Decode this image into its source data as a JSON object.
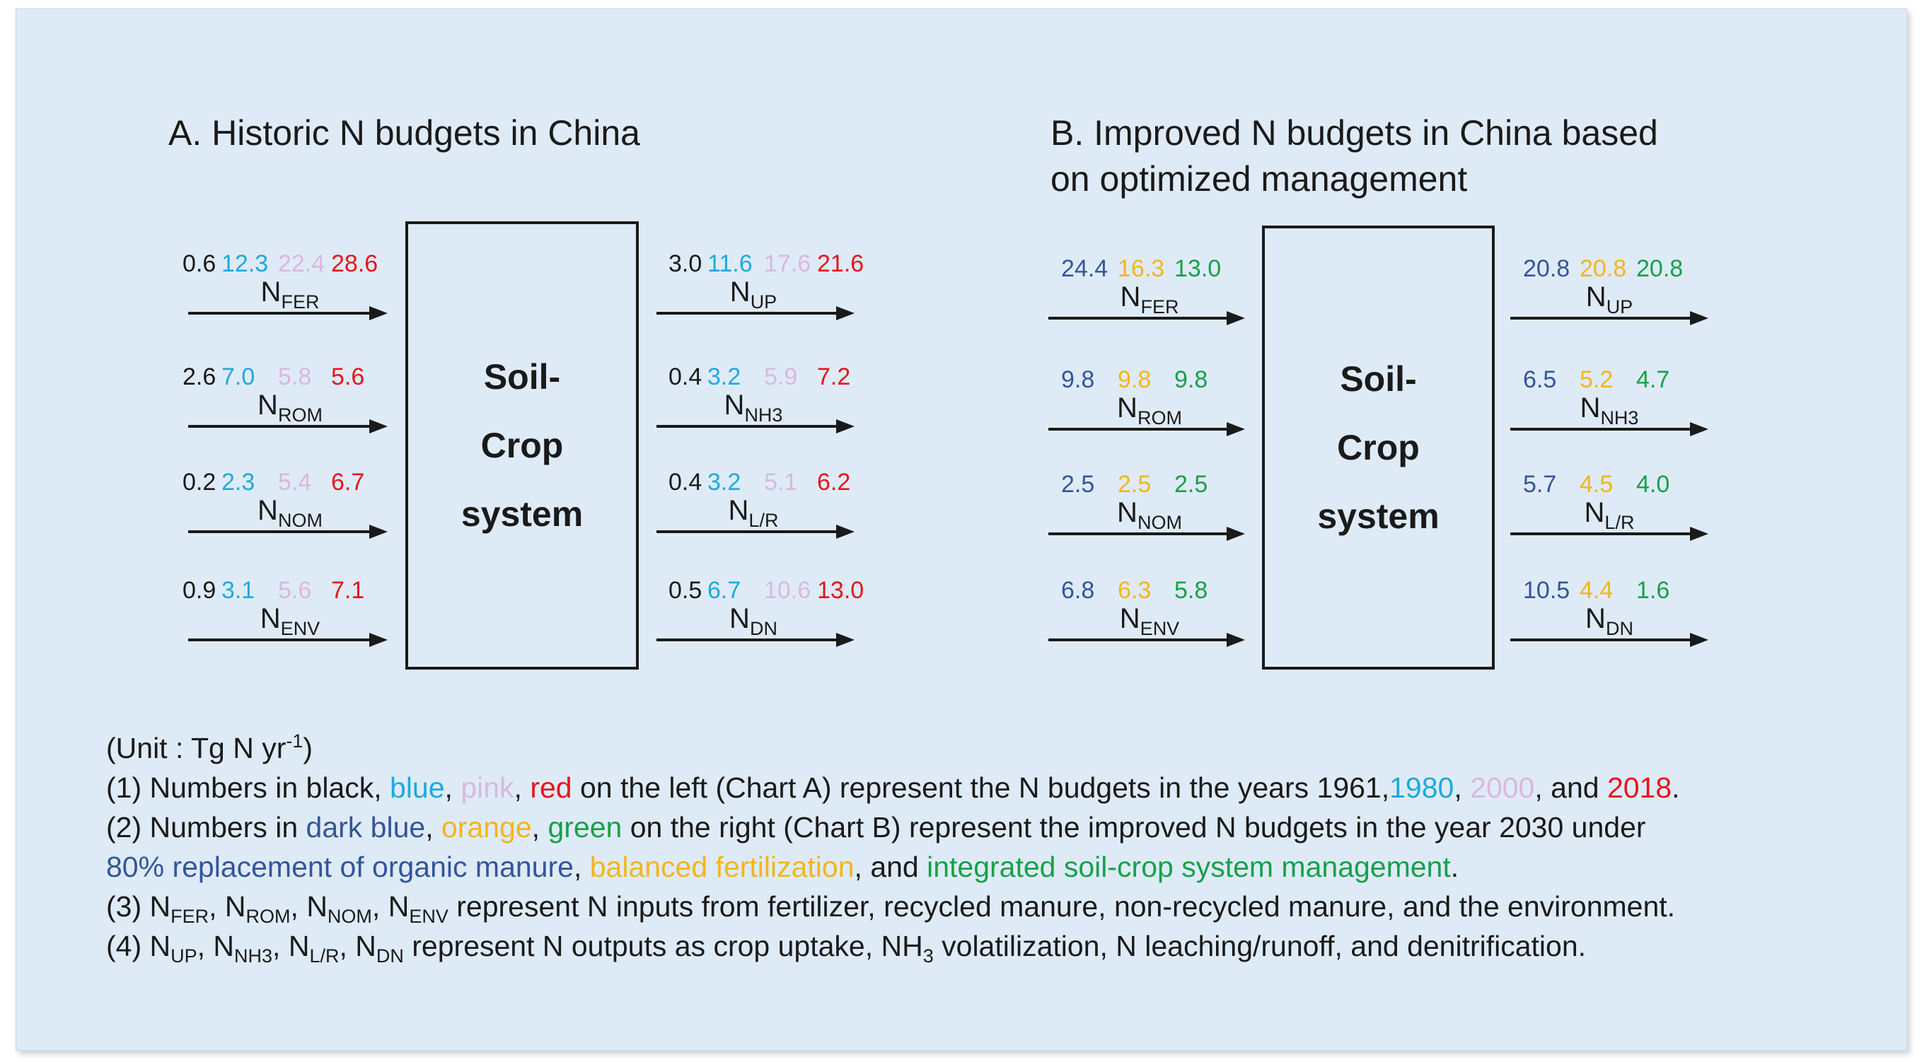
{
  "colors": {
    "black": "#1a1a1a",
    "blue": "#1fa9de",
    "pink": "#d9b8de",
    "red": "#e8141c",
    "dark_blue": "#34559b",
    "orange": "#f5b41e",
    "green": "#18a04a",
    "background": "#deebf7"
  },
  "chartA": {
    "title": "A. Historic N budgets in China",
    "box": [
      "Soil-",
      "Crop",
      "system"
    ],
    "inputs": [
      {
        "label": "N",
        "sub": "FER",
        "values": [
          "0.6",
          "12.3",
          "22.4",
          "28.6"
        ]
      },
      {
        "label": "N",
        "sub": "ROM",
        "values": [
          "2.6",
          "7.0",
          "5.8",
          "5.6"
        ]
      },
      {
        "label": "N",
        "sub": "NOM",
        "values": [
          "0.2",
          "2.3",
          "5.4",
          "6.7"
        ]
      },
      {
        "label": "N",
        "sub": "ENV",
        "values": [
          "0.9",
          "3.1",
          "5.6",
          "7.1"
        ]
      }
    ],
    "outputs": [
      {
        "label": "N",
        "sub": "UP",
        "values": [
          "3.0",
          "11.6",
          "17.6",
          "21.6"
        ]
      },
      {
        "label": "N",
        "sub": "NH3",
        "values": [
          "0.4",
          "3.2",
          "5.9",
          "7.2"
        ]
      },
      {
        "label": "N",
        "sub": "L/R",
        "values": [
          "0.4",
          "3.2",
          "5.1",
          "6.2"
        ]
      },
      {
        "label": "N",
        "sub": "DN",
        "values": [
          "0.5",
          "6.7",
          "10.6",
          "13.0"
        ]
      }
    ]
  },
  "chartB": {
    "title_line1": "B. Improved N budgets in China based",
    "title_line2": "on optimized management",
    "box": [
      "Soil-",
      "Crop",
      "system"
    ],
    "inputs": [
      {
        "label": "N",
        "sub": "FER",
        "values": [
          "24.4",
          "16.3",
          "13.0"
        ]
      },
      {
        "label": "N",
        "sub": "ROM",
        "values": [
          "9.8",
          "9.8",
          "9.8"
        ]
      },
      {
        "label": "N",
        "sub": "NOM",
        "values": [
          "2.5",
          "2.5",
          "2.5"
        ]
      },
      {
        "label": "N",
        "sub": "ENV",
        "values": [
          "6.8",
          "6.3",
          "5.8"
        ]
      }
    ],
    "outputs": [
      {
        "label": "N",
        "sub": "UP",
        "values": [
          "20.8",
          "20.8",
          "20.8"
        ]
      },
      {
        "label": "N",
        "sub": "NH3",
        "values": [
          "6.5",
          "5.2",
          "4.7"
        ]
      },
      {
        "label": "N",
        "sub": "L/R",
        "values": [
          "5.7",
          "4.5",
          "4.0"
        ]
      },
      {
        "label": "N",
        "sub": "DN",
        "values": [
          "10.5",
          "4.4",
          "1.6"
        ]
      }
    ]
  },
  "notes": {
    "unit_a": "(Unit : Tg N yr",
    "unit_sup": "-1",
    "unit_b": ")",
    "n1": {
      "a": "(1) Numbers in black, ",
      "blue": "blue",
      "c1": ", ",
      "pink": "pink",
      "c2": ", ",
      "red": "red",
      "b": " on the left (Chart A) represent the N budgets in the years 1961,",
      "y1980": "1980",
      "c3": ", ",
      "y2000": "2000",
      "c4": ", and ",
      "y2018": "2018",
      "end": "."
    },
    "n2": {
      "a": "(2) Numbers in ",
      "dblue": "dark blue",
      "c1": ", ",
      "orange": "orange",
      "c2": ", ",
      "green": "green",
      "b": " on the right (Chart B) represent the improved N budgets in the year 2030 under",
      "s1": "80% replacement of organic manure",
      "c3": ", ",
      "s2": "balanced fertilization",
      "c4": ", and ",
      "s3": "integrated soil-crop system management",
      "end": "."
    },
    "n3": {
      "a": "(3) ",
      "N": "N",
      "fer": "FER",
      "rom": "ROM",
      "nom": "NOM",
      "env": "ENV",
      "sep": ", ",
      "b": " represent N inputs from fertilizer, recycled manure, non-recycled manure, and the environment."
    },
    "n4": {
      "a": "(4) ",
      "N": "N",
      "up": "UP",
      "nh3": "NH3",
      "lr": "L/R",
      "dn": "DN",
      "sep": ", ",
      "b": " represent N outputs as crop uptake, NH",
      "sub3": "3",
      "c": " volatilization, N leaching/runoff, and denitrification."
    }
  }
}
